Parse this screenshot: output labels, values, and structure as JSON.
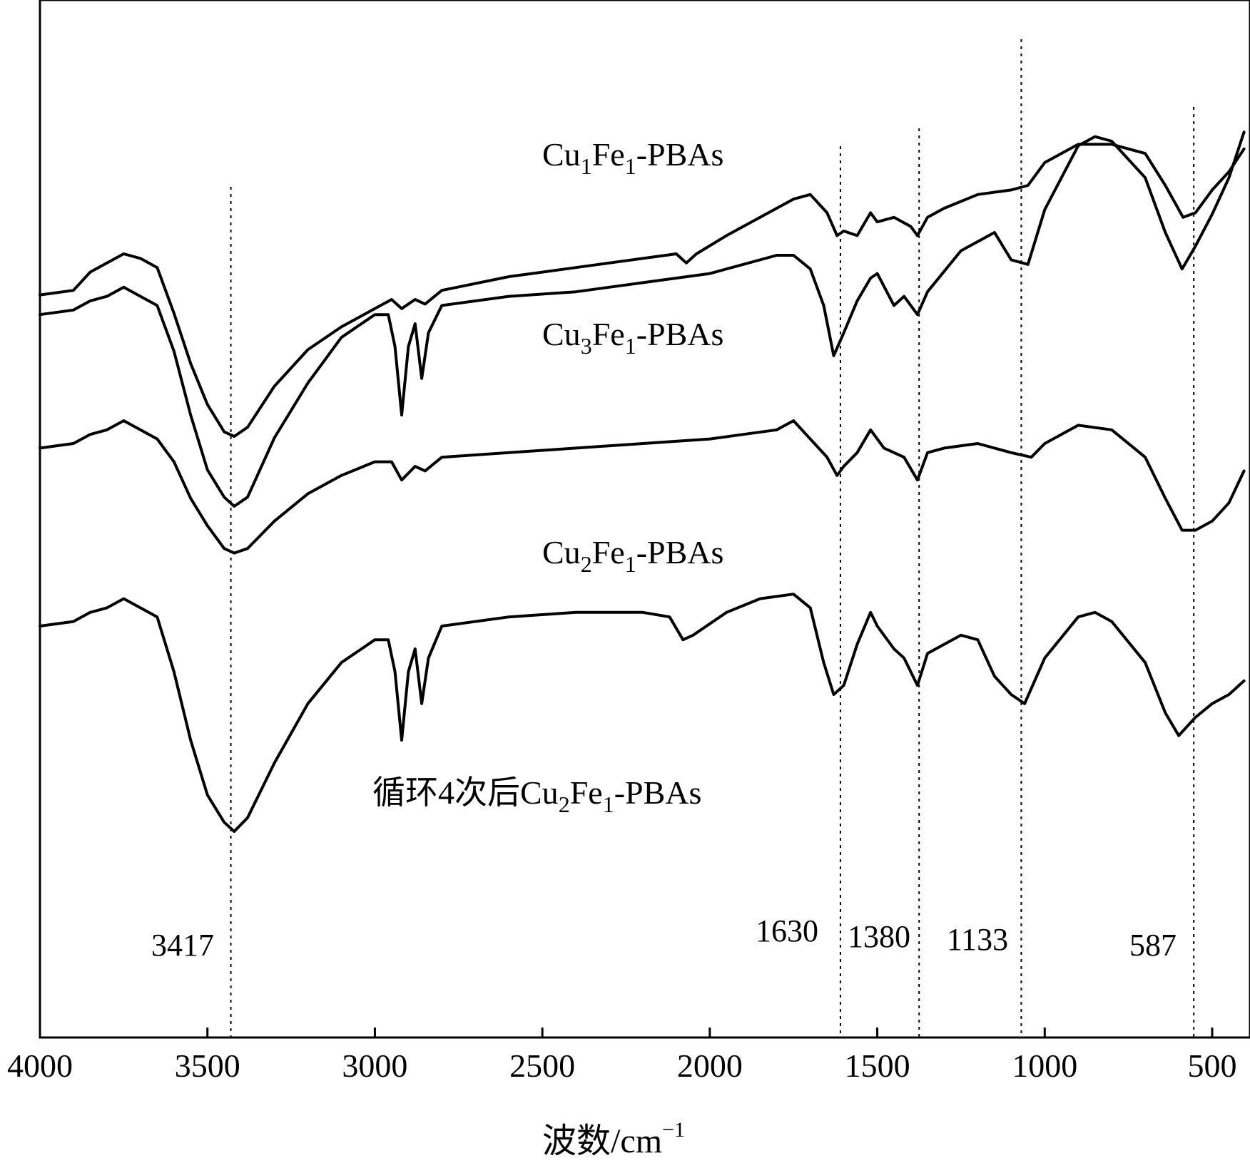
{
  "chart_data": {
    "type": "line",
    "title": "",
    "xlabel": "波数/cm",
    "xlabel_superscript": "−1",
    "ylabel": "",
    "xlim": [
      4000,
      400
    ],
    "x_reversed": true,
    "y_axis_ticks": false,
    "grid": false,
    "legend": "none",
    "xticks": [
      "4000",
      "3500",
      "3000",
      "2500",
      "2000",
      "1500",
      "1000",
      "500"
    ],
    "peak_markers": [
      {
        "label": "3417",
        "x": 3430
      },
      {
        "label": "1630",
        "x": 1610
      },
      {
        "label": "1380",
        "x": 1375
      },
      {
        "label": "1133",
        "x": 1070
      },
      {
        "label": "587",
        "x": 555
      }
    ],
    "line_color": "#000000",
    "series": [
      {
        "name": "Cu1Fe1-PBAs",
        "label": {
          "pre": "Cu",
          "s1": "1",
          "mid": "Fe",
          "s2": "1",
          "post": "-PBAs"
        },
        "points": [
          [
            4000,
            0.76
          ],
          [
            3900,
            0.77
          ],
          [
            3850,
            0.81
          ],
          [
            3800,
            0.83
          ],
          [
            3750,
            0.85
          ],
          [
            3700,
            0.84
          ],
          [
            3650,
            0.82
          ],
          [
            3600,
            0.72
          ],
          [
            3550,
            0.61
          ],
          [
            3500,
            0.52
          ],
          [
            3450,
            0.46
          ],
          [
            3420,
            0.45
          ],
          [
            3380,
            0.47
          ],
          [
            3300,
            0.56
          ],
          [
            3200,
            0.64
          ],
          [
            3100,
            0.69
          ],
          [
            3000,
            0.73
          ],
          [
            2950,
            0.75
          ],
          [
            2920,
            0.73
          ],
          [
            2880,
            0.75
          ],
          [
            2850,
            0.74
          ],
          [
            2800,
            0.77
          ],
          [
            2600,
            0.8
          ],
          [
            2400,
            0.82
          ],
          [
            2200,
            0.84
          ],
          [
            2100,
            0.85
          ],
          [
            2070,
            0.83
          ],
          [
            2040,
            0.85
          ],
          [
            1950,
            0.89
          ],
          [
            1850,
            0.93
          ],
          [
            1750,
            0.97
          ],
          [
            1700,
            0.98
          ],
          [
            1650,
            0.94
          ],
          [
            1620,
            0.89
          ],
          [
            1600,
            0.9
          ],
          [
            1560,
            0.89
          ],
          [
            1520,
            0.94
          ],
          [
            1500,
            0.92
          ],
          [
            1450,
            0.93
          ],
          [
            1400,
            0.91
          ],
          [
            1380,
            0.89
          ],
          [
            1350,
            0.93
          ],
          [
            1300,
            0.95
          ],
          [
            1200,
            0.98
          ],
          [
            1100,
            0.99
          ],
          [
            1050,
            1.0
          ],
          [
            1000,
            1.05
          ],
          [
            900,
            1.09
          ],
          [
            800,
            1.09
          ],
          [
            700,
            1.07
          ],
          [
            640,
            1.0
          ],
          [
            587,
            0.93
          ],
          [
            550,
            0.94
          ],
          [
            500,
            0.99
          ],
          [
            450,
            1.03
          ],
          [
            405,
            1.08
          ]
        ]
      },
      {
        "name": "Cu3Fe1-PBAs",
        "label": {
          "pre": "Cu",
          "s1": "3",
          "mid": "Fe",
          "s2": "1",
          "post": "-PBAs"
        },
        "points": [
          [
            4000,
            0.62
          ],
          [
            3900,
            0.63
          ],
          [
            3850,
            0.65
          ],
          [
            3800,
            0.66
          ],
          [
            3750,
            0.68
          ],
          [
            3700,
            0.66
          ],
          [
            3650,
            0.64
          ],
          [
            3600,
            0.54
          ],
          [
            3550,
            0.4
          ],
          [
            3500,
            0.28
          ],
          [
            3450,
            0.22
          ],
          [
            3420,
            0.2
          ],
          [
            3380,
            0.22
          ],
          [
            3300,
            0.35
          ],
          [
            3200,
            0.47
          ],
          [
            3100,
            0.57
          ],
          [
            3000,
            0.62
          ],
          [
            2960,
            0.62
          ],
          [
            2940,
            0.55
          ],
          [
            2920,
            0.4
          ],
          [
            2900,
            0.55
          ],
          [
            2880,
            0.6
          ],
          [
            2860,
            0.48
          ],
          [
            2840,
            0.58
          ],
          [
            2800,
            0.64
          ],
          [
            2600,
            0.66
          ],
          [
            2400,
            0.67
          ],
          [
            2200,
            0.69
          ],
          [
            2000,
            0.71
          ],
          [
            1900,
            0.73
          ],
          [
            1800,
            0.75
          ],
          [
            1750,
            0.75
          ],
          [
            1700,
            0.72
          ],
          [
            1660,
            0.64
          ],
          [
            1630,
            0.53
          ],
          [
            1600,
            0.58
          ],
          [
            1560,
            0.65
          ],
          [
            1520,
            0.7
          ],
          [
            1500,
            0.71
          ],
          [
            1450,
            0.64
          ],
          [
            1420,
            0.66
          ],
          [
            1380,
            0.62
          ],
          [
            1350,
            0.67
          ],
          [
            1250,
            0.76
          ],
          [
            1150,
            0.8
          ],
          [
            1100,
            0.74
          ],
          [
            1050,
            0.73
          ],
          [
            1000,
            0.85
          ],
          [
            900,
            0.99
          ],
          [
            850,
            1.01
          ],
          [
            800,
            1.0
          ],
          [
            700,
            0.92
          ],
          [
            640,
            0.8
          ],
          [
            590,
            0.72
          ],
          [
            550,
            0.77
          ],
          [
            500,
            0.84
          ],
          [
            450,
            0.92
          ],
          [
            405,
            1.02
          ]
        ]
      },
      {
        "name": "Cu2Fe1-PBAs",
        "label": {
          "pre": "Cu",
          "s1": "2",
          "mid": "Fe",
          "s2": "1",
          "post": "-PBAs"
        },
        "points": [
          [
            4000,
            0.44
          ],
          [
            3900,
            0.45
          ],
          [
            3850,
            0.47
          ],
          [
            3800,
            0.48
          ],
          [
            3750,
            0.5
          ],
          [
            3700,
            0.48
          ],
          [
            3650,
            0.46
          ],
          [
            3600,
            0.41
          ],
          [
            3550,
            0.33
          ],
          [
            3500,
            0.27
          ],
          [
            3450,
            0.22
          ],
          [
            3420,
            0.21
          ],
          [
            3380,
            0.22
          ],
          [
            3300,
            0.28
          ],
          [
            3200,
            0.34
          ],
          [
            3100,
            0.38
          ],
          [
            3000,
            0.41
          ],
          [
            2950,
            0.41
          ],
          [
            2920,
            0.37
          ],
          [
            2880,
            0.4
          ],
          [
            2850,
            0.39
          ],
          [
            2800,
            0.42
          ],
          [
            2600,
            0.43
          ],
          [
            2400,
            0.44
          ],
          [
            2200,
            0.45
          ],
          [
            2000,
            0.46
          ],
          [
            1900,
            0.47
          ],
          [
            1800,
            0.48
          ],
          [
            1750,
            0.5
          ],
          [
            1700,
            0.46
          ],
          [
            1650,
            0.42
          ],
          [
            1620,
            0.38
          ],
          [
            1600,
            0.4
          ],
          [
            1560,
            0.43
          ],
          [
            1520,
            0.48
          ],
          [
            1480,
            0.44
          ],
          [
            1420,
            0.42
          ],
          [
            1380,
            0.37
          ],
          [
            1350,
            0.43
          ],
          [
            1300,
            0.44
          ],
          [
            1200,
            0.45
          ],
          [
            1100,
            0.43
          ],
          [
            1040,
            0.42
          ],
          [
            1000,
            0.45
          ],
          [
            900,
            0.49
          ],
          [
            800,
            0.48
          ],
          [
            700,
            0.42
          ],
          [
            640,
            0.33
          ],
          [
            590,
            0.26
          ],
          [
            550,
            0.26
          ],
          [
            500,
            0.28
          ],
          [
            450,
            0.32
          ],
          [
            405,
            0.39
          ]
        ]
      },
      {
        "name": "循环4次后Cu2Fe1-PBAs",
        "label": {
          "pre": "循环4次后Cu",
          "s1": "2",
          "mid": "Fe",
          "s2": "1",
          "post": "-PBAs"
        },
        "points": [
          [
            4000,
            0.05
          ],
          [
            3900,
            0.06
          ],
          [
            3850,
            0.08
          ],
          [
            3800,
            0.09
          ],
          [
            3750,
            0.11
          ],
          [
            3700,
            0.09
          ],
          [
            3650,
            0.07
          ],
          [
            3600,
            -0.05
          ],
          [
            3550,
            -0.2
          ],
          [
            3500,
            -0.32
          ],
          [
            3450,
            -0.38
          ],
          [
            3420,
            -0.4
          ],
          [
            3380,
            -0.37
          ],
          [
            3300,
            -0.25
          ],
          [
            3200,
            -0.12
          ],
          [
            3100,
            -0.03
          ],
          [
            3000,
            0.02
          ],
          [
            2960,
            0.02
          ],
          [
            2940,
            -0.05
          ],
          [
            2920,
            -0.2
          ],
          [
            2900,
            -0.05
          ],
          [
            2880,
            0.0
          ],
          [
            2860,
            -0.12
          ],
          [
            2840,
            -0.02
          ],
          [
            2800,
            0.05
          ],
          [
            2600,
            0.07
          ],
          [
            2400,
            0.08
          ],
          [
            2200,
            0.08
          ],
          [
            2120,
            0.07
          ],
          [
            2080,
            0.02
          ],
          [
            2050,
            0.03
          ],
          [
            1950,
            0.08
          ],
          [
            1850,
            0.11
          ],
          [
            1750,
            0.12
          ],
          [
            1700,
            0.09
          ],
          [
            1660,
            -0.03
          ],
          [
            1630,
            -0.1
          ],
          [
            1600,
            -0.08
          ],
          [
            1560,
            0.01
          ],
          [
            1520,
            0.08
          ],
          [
            1500,
            0.05
          ],
          [
            1450,
            0.0
          ],
          [
            1420,
            -0.02
          ],
          [
            1380,
            -0.08
          ],
          [
            1350,
            -0.01
          ],
          [
            1250,
            0.03
          ],
          [
            1200,
            0.02
          ],
          [
            1150,
            -0.06
          ],
          [
            1100,
            -0.1
          ],
          [
            1060,
            -0.12
          ],
          [
            1000,
            -0.02
          ],
          [
            900,
            0.07
          ],
          [
            850,
            0.08
          ],
          [
            800,
            0.06
          ],
          [
            700,
            -0.03
          ],
          [
            640,
            -0.14
          ],
          [
            600,
            -0.19
          ],
          [
            550,
            -0.15
          ],
          [
            500,
            -0.12
          ],
          [
            450,
            -0.1
          ],
          [
            405,
            -0.07
          ]
        ]
      }
    ]
  }
}
